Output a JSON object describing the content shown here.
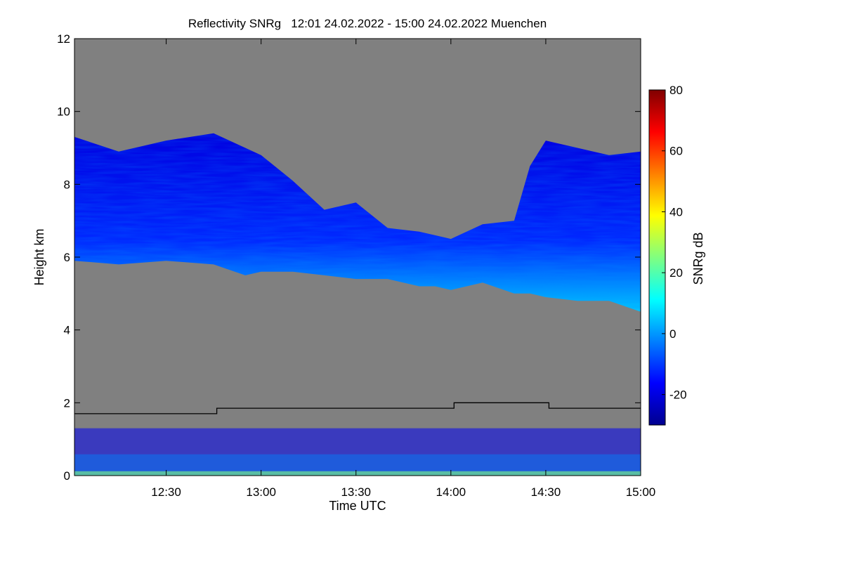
{
  "chart_data": {
    "type": "heatmap",
    "title": "Reflectivity SNRg   12:01 24.02.2022 - 15:00 24.02.2022 Muenchen",
    "xlabel": "Time UTC",
    "ylabel": "Height km",
    "x_ticks": [
      "12:30",
      "13:00",
      "13:30",
      "14:00",
      "14:30",
      "15:00"
    ],
    "x_tick_minutes": [
      30,
      60,
      90,
      120,
      150,
      180
    ],
    "x_range_minutes": [
      1,
      180
    ],
    "y_ticks": [
      0,
      2,
      4,
      6,
      8,
      10,
      12
    ],
    "ylim": [
      0,
      12
    ],
    "colorbar": {
      "label": "SNRg dB",
      "ticks": [
        -20,
        0,
        20,
        40,
        60,
        80
      ],
      "range": [
        -30,
        80
      ],
      "colormap": [
        "#00008f",
        "#0000ff",
        "#0080ff",
        "#00ffff",
        "#80ff80",
        "#ffff00",
        "#ff8000",
        "#ff0000",
        "#800000"
      ]
    },
    "background_color": "#808080",
    "cloud_layer": {
      "minutes": [
        1,
        15,
        30,
        45,
        55,
        60,
        70,
        80,
        90,
        100,
        110,
        115,
        120,
        130,
        140,
        145,
        150,
        160,
        170,
        180
      ],
      "top_km": [
        9.3,
        8.9,
        9.2,
        9.4,
        9.0,
        8.8,
        8.1,
        7.3,
        7.5,
        6.8,
        6.7,
        6.6,
        6.5,
        6.9,
        7.0,
        8.5,
        9.2,
        9.0,
        8.8,
        8.9
      ],
      "base_km": [
        5.9,
        5.8,
        5.9,
        5.8,
        5.5,
        5.6,
        5.6,
        5.5,
        5.4,
        5.4,
        5.2,
        5.2,
        5.1,
        5.3,
        5.0,
        5.0,
        4.9,
        4.8,
        4.8,
        4.5
      ],
      "snr_top_db": -20,
      "snr_base_db": 0
    },
    "boundary_layer_line": {
      "minutes": [
        1,
        46,
        46,
        121,
        121,
        151,
        151,
        180
      ],
      "height_km": [
        1.7,
        1.7,
        1.85,
        1.85,
        2.0,
        2.0,
        1.85,
        1.85
      ],
      "color": "#000000"
    },
    "low_clutter_top_km": 1.3
  }
}
